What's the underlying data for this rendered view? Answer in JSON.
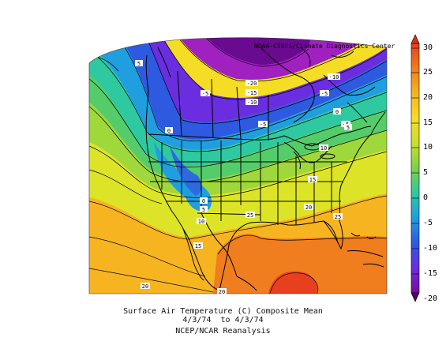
{
  "credit": "NOAA-CIRES/Climate Diagnostics Center",
  "caption": {
    "line1": "Surface Air Temperature (C) Composite Mean",
    "line2": "4/3/74  to 4/3/74",
    "line3": "NCEP/NCAR Reanalysis"
  },
  "colorbar": {
    "labels": [
      "30",
      "25",
      "20",
      "15",
      "10",
      "5",
      "0",
      "-5",
      "-10",
      "-15",
      "-20"
    ],
    "colors": [
      "#e8401e",
      "#f07d1e",
      "#f7b421",
      "#f6dd25",
      "#c8e02b",
      "#7ed04a",
      "#2ec9a0",
      "#1f9ee0",
      "#2d5ae0",
      "#6a2ee0",
      "#a020c0",
      "#6a0a90"
    ]
  },
  "contour_labels": [
    "5",
    "-20",
    "-15",
    "-10",
    "-5",
    "-5",
    "-10",
    "-5",
    "0",
    "-5",
    "0",
    "0",
    "5",
    "10",
    "10",
    "15",
    "25",
    "20",
    "25",
    "15",
    "20",
    "20",
    "5"
  ]
}
